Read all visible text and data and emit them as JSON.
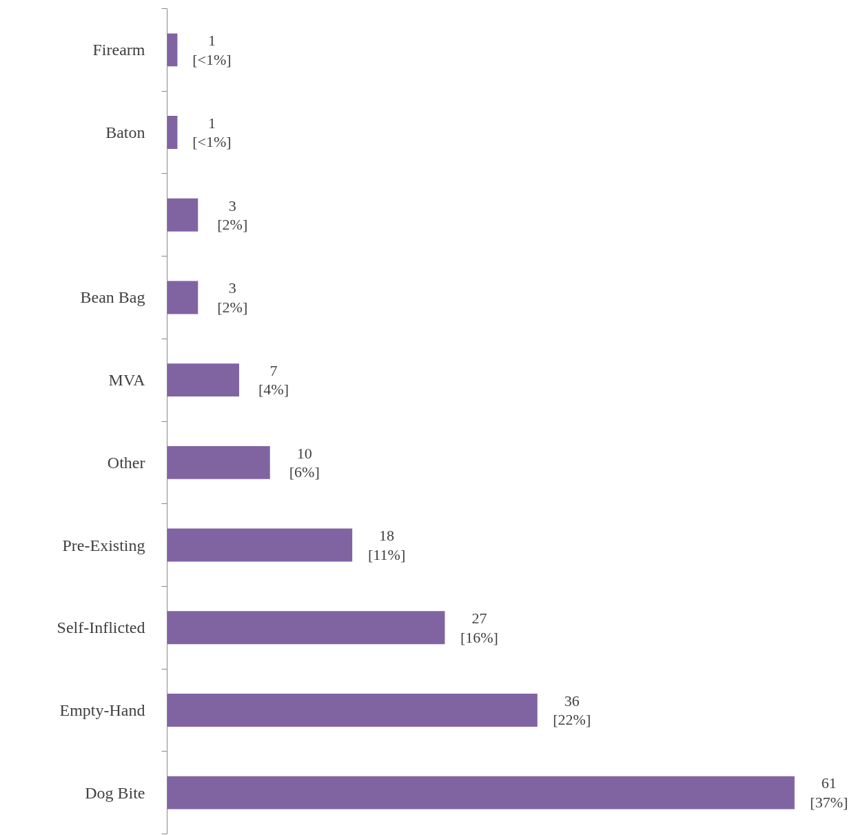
{
  "chart_data": {
    "type": "bar",
    "orientation": "horizontal",
    "categories": [
      "Firearm",
      "Baton",
      null,
      "Bean Bag",
      "MVA",
      "Other",
      "Pre-Existing",
      "Self-Inflicted",
      "Empty-Hand",
      "Dog Bite"
    ],
    "values": [
      1,
      1,
      3,
      3,
      7,
      10,
      18,
      27,
      36,
      61
    ],
    "value_labels": [
      "1\n[<1%]",
      "1\n[<1%]",
      "3\n[2%]",
      "3\n[2%]",
      "7\n[4%]",
      "10\n[6%]",
      "18\n[11%]",
      "27\n[16%]",
      "36\n[22%]",
      "61\n[37%]"
    ],
    "color": "#8064a2",
    "grid": false
  }
}
